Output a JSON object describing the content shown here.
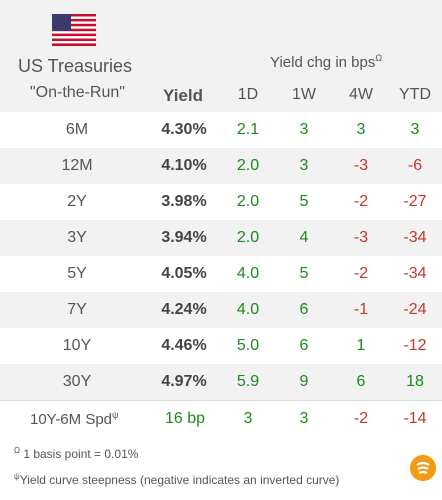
{
  "header": {
    "title": "US Treasuries",
    "subtitle": "\"On-the-Run\"",
    "yield_label": "Yield",
    "chg_label": "Yield chg in bps",
    "chg_marker": "Ω",
    "columns": [
      "1D",
      "1W",
      "4W",
      "YTD"
    ]
  },
  "rows": [
    {
      "tenor": "6M",
      "yield": "4.30%",
      "d1": "2.1",
      "w1": "3",
      "w4": "3",
      "ytd": "3"
    },
    {
      "tenor": "12M",
      "yield": "4.10%",
      "d1": "2.0",
      "w1": "3",
      "w4": "-3",
      "ytd": "-6"
    },
    {
      "tenor": "2Y",
      "yield": "3.98%",
      "d1": "2.0",
      "w1": "5",
      "w4": "-2",
      "ytd": "-27"
    },
    {
      "tenor": "3Y",
      "yield": "3.94%",
      "d1": "2.0",
      "w1": "4",
      "w4": "-3",
      "ytd": "-34"
    },
    {
      "tenor": "5Y",
      "yield": "4.05%",
      "d1": "4.0",
      "w1": "5",
      "w4": "-2",
      "ytd": "-34"
    },
    {
      "tenor": "7Y",
      "yield": "4.24%",
      "d1": "4.0",
      "w1": "6",
      "w4": "-1",
      "ytd": "-24"
    },
    {
      "tenor": "10Y",
      "yield": "4.46%",
      "d1": "5.0",
      "w1": "6",
      "w4": "1",
      "ytd": "-12"
    },
    {
      "tenor": "30Y",
      "yield": "4.97%",
      "d1": "5.9",
      "w1": "9",
      "w4": "6",
      "ytd": "18"
    }
  ],
  "spread": {
    "label": "10Y-6M Spd",
    "marker": "ψ",
    "value": "16 bp",
    "d1": "3",
    "w1": "3",
    "w4": "-2",
    "ytd": "-14"
  },
  "footnotes": {
    "note1_marker": "Ω",
    "note1": "1 basis point = 0.01%",
    "note2_marker": "ψ",
    "note2": "Yield curve steepness (negative indicates an inverted curve)"
  },
  "icons": {
    "flag": "us-flag-icon",
    "logo": "brand-logo-icon"
  },
  "colors": {
    "positive": "#1a8a1a",
    "negative": "#c0392b",
    "stripe": "#f2f2f2",
    "logo": "#f39c12"
  }
}
